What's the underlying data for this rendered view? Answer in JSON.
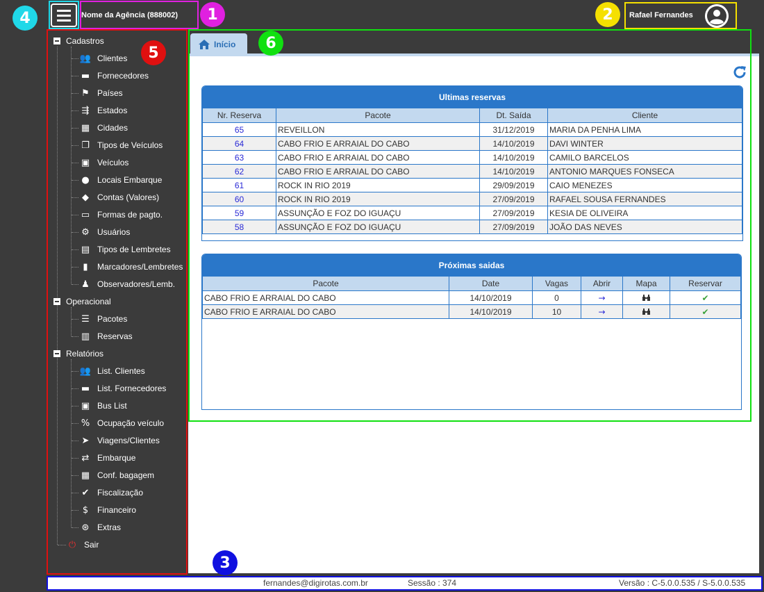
{
  "header": {
    "agency": "Nome da Agência (888002)",
    "user_name": "Rafael Fernandes",
    "icons": {
      "menu": "hamburger-icon",
      "avatar": "user-circle-icon"
    }
  },
  "callouts": [
    "1",
    "2",
    "3",
    "4",
    "5",
    "6"
  ],
  "callout_colors": {
    "1": "#e020e0",
    "2": "#f5e000",
    "3": "#1010e0",
    "4": "#20d8e8",
    "5": "#e01010",
    "6": "#10e010"
  },
  "sidebar": {
    "groups": [
      {
        "label": "Cadastros",
        "items": [
          {
            "label": "Clientes",
            "icon": "users-icon"
          },
          {
            "label": "Fornecedores",
            "icon": "briefcase-icon"
          },
          {
            "label": "Países",
            "icon": "flag-icon"
          },
          {
            "label": "Estados",
            "icon": "signpost-icon"
          },
          {
            "label": "Cidades",
            "icon": "building-icon"
          },
          {
            "label": "Tipos de Veículos",
            "icon": "clone-icon"
          },
          {
            "label": "Veículos",
            "icon": "bus-icon"
          },
          {
            "label": "Locais Embarque",
            "icon": "map-marker-icon"
          },
          {
            "label": "Contas (Valores)",
            "icon": "tags-icon"
          },
          {
            "label": "Formas de pagto.",
            "icon": "money-bill-icon"
          },
          {
            "label": "Usuários",
            "icon": "users-cog-icon"
          },
          {
            "label": "Tipos de Lembretes",
            "icon": "calendar-check-icon"
          },
          {
            "label": "Marcadores/Lembretes",
            "icon": "bookmark-icon"
          },
          {
            "label": "Observadores/Lemb.",
            "icon": "user-edit-icon"
          }
        ]
      },
      {
        "label": "Operacional",
        "items": [
          {
            "label": "Pacotes",
            "icon": "tasks-icon"
          },
          {
            "label": "Reservas",
            "icon": "clipboard-list-icon"
          }
        ]
      },
      {
        "label": "Relatórios",
        "items": [
          {
            "label": "List. Clientes",
            "icon": "users-icon"
          },
          {
            "label": "List. Fornecedores",
            "icon": "briefcase-icon"
          },
          {
            "label": "Bus List",
            "icon": "bus-icon"
          },
          {
            "label": "Ocupação veículo",
            "icon": "percent-icon"
          },
          {
            "label": "Viagens/Clientes",
            "icon": "location-arrow-icon"
          },
          {
            "label": "Embarque",
            "icon": "exchange-icon"
          },
          {
            "label": "Conf. bagagem",
            "icon": "suitcase-icon"
          },
          {
            "label": "Fiscalização",
            "icon": "check-circle-icon"
          },
          {
            "label": "Financeiro",
            "icon": "dollar-icon"
          },
          {
            "label": "Extras",
            "icon": "search-dollar-icon"
          }
        ]
      }
    ],
    "logout": {
      "label": "Sair",
      "icon": "power-icon"
    }
  },
  "tab": {
    "label": "Início",
    "icon": "home-icon"
  },
  "refresh_icon": "refresh-icon",
  "reservations": {
    "title": "Ultimas reservas",
    "columns": [
      "Nr. Reserva",
      "Pacote",
      "Dt. Saída",
      "Cliente"
    ],
    "rows": [
      [
        "65",
        "REVEILLON",
        "31/12/2019",
        "MARIA DA PENHA LIMA"
      ],
      [
        "64",
        "CABO FRIO E ARRAIAL DO CABO",
        "14/10/2019",
        "DAVI WINTER"
      ],
      [
        "63",
        "CABO FRIO E ARRAIAL DO CABO",
        "14/10/2019",
        "CAMILO BARCELOS"
      ],
      [
        "62",
        "CABO FRIO E ARRAIAL DO CABO",
        "14/10/2019",
        "ANTONIO MARQUES FONSECA"
      ],
      [
        "61",
        "ROCK IN RIO 2019",
        "29/09/2019",
        "CAIO MENEZES"
      ],
      [
        "60",
        "ROCK IN RIO 2019",
        "27/09/2019",
        "RAFAEL SOUSA FERNANDES"
      ],
      [
        "59",
        "ASSUNÇÃO E FOZ DO IGUAÇU",
        "27/09/2019",
        "KESIA DE OLIVEIRA"
      ],
      [
        "58",
        "ASSUNÇÃO E FOZ DO IGUAÇU",
        "27/09/2019",
        "JOÃO DAS NEVES"
      ]
    ]
  },
  "departures": {
    "title": "Próximas saidas",
    "columns": [
      "Pacote",
      "Date",
      "Vagas",
      "Abrir",
      "Mapa",
      "Reservar"
    ],
    "rows": [
      [
        "CABO FRIO E ARRAIAL DO CABO",
        "14/10/2019",
        "0"
      ],
      [
        "CABO FRIO E ARRAIAL DO CABO",
        "14/10/2019",
        "10"
      ]
    ],
    "row_icons": {
      "open": "arrow-right-icon",
      "map": "binoculars-icon",
      "reserve": "check-icon"
    }
  },
  "footer": {
    "email": "fernandes@digirotas.com.br",
    "session": "Sessão : 374",
    "version": "Versão : C-5.0.0.535 / S-5.0.0.535"
  }
}
